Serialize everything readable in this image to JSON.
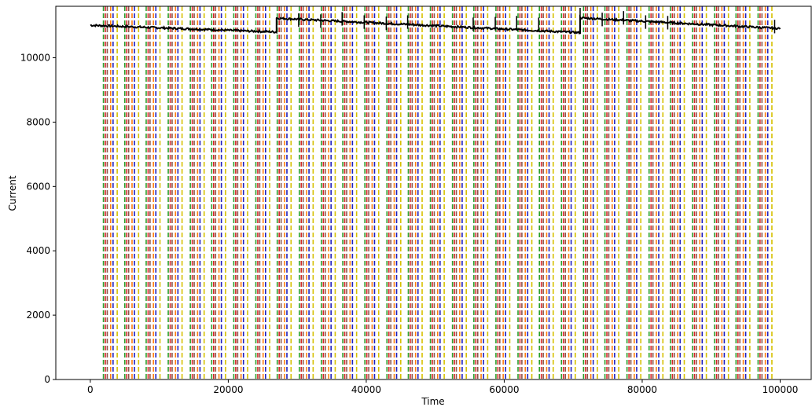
{
  "chart_data": {
    "type": "line",
    "title": "",
    "xlabel": "Time",
    "ylabel": "Current",
    "xlim": [
      -5000,
      104500
    ],
    "ylim": [
      0,
      11600
    ],
    "xticks": [
      0,
      20000,
      40000,
      60000,
      80000,
      100000
    ],
    "yticks": [
      0,
      2000,
      4000,
      6000,
      8000,
      10000
    ],
    "grid": false,
    "legend": "none",
    "series": [
      {
        "color": "#000000",
        "x_range": [
          0,
          100000
        ],
        "segments": [
          {
            "x": [
              0,
              27000
            ],
            "y": [
              11010,
              10800
            ]
          },
          {
            "x": [
              27000,
              71000
            ],
            "y": [
              11230,
              10780
            ]
          },
          {
            "x": [
              71000,
              100000
            ],
            "y": [
              11240,
              10910
            ]
          }
        ],
        "spikes": [
          {
            "x": 27000,
            "y": 11260
          },
          {
            "x": 30200,
            "y": 11380
          },
          {
            "x": 33400,
            "y": 11350
          },
          {
            "x": 36500,
            "y": 11420
          },
          {
            "x": 39700,
            "y": 11320
          },
          {
            "x": 42900,
            "y": 11280
          },
          {
            "x": 46000,
            "y": 11320
          },
          {
            "x": 55500,
            "y": 11250
          },
          {
            "x": 58700,
            "y": 11270
          },
          {
            "x": 61800,
            "y": 11300
          },
          {
            "x": 65000,
            "y": 11250
          },
          {
            "x": 71000,
            "y": 11550
          },
          {
            "x": 74200,
            "y": 11400
          },
          {
            "x": 77300,
            "y": 11450
          },
          {
            "x": 80500,
            "y": 11320
          },
          {
            "x": 83700,
            "y": 11300
          },
          {
            "x": 99200,
            "y": 11180
          }
        ]
      }
    ],
    "vline_groups": {
      "colors": [
        "#2ca02c",
        "#d62728",
        "#8c564b",
        "#ff7f0e",
        "#1f1fbf",
        "#d6c000"
      ],
      "style": "dashed",
      "group_starts": [
        1900,
        5000,
        8100,
        11300,
        14500,
        17600,
        20800,
        24000,
        27100,
        30300,
        33500,
        36600,
        39800,
        43000,
        46100,
        49300,
        52500,
        55600,
        58800,
        62000,
        65100,
        68300,
        71500,
        74600,
        77800,
        81000,
        84100,
        87300,
        90500,
        93600,
        96800
      ],
      "offsets": [
        0,
        280,
        560,
        1050,
        1400,
        2000
      ]
    }
  }
}
